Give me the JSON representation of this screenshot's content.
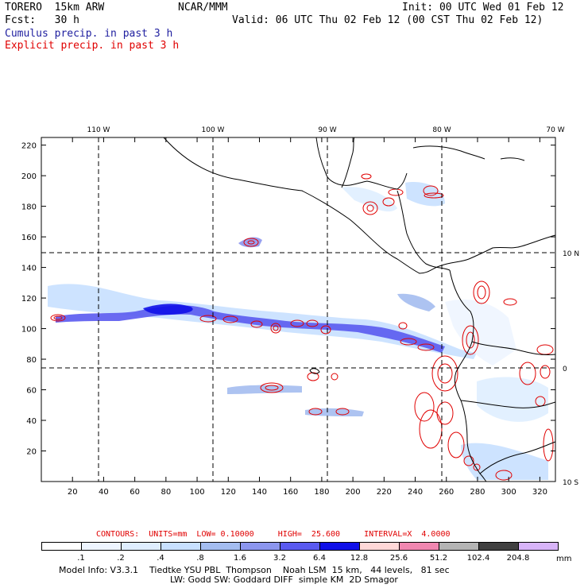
{
  "header": {
    "model": "TORERO  15km ARW",
    "org": "NCAR/MMM",
    "init": "Init: 00 UTC Wed 01 Feb 12",
    "fcst": "Fcst:   30 h",
    "valid": "Valid: 06 UTC Thu 02 Feb 12 (00 CST Thu 02 Feb 12)",
    "line_cumulus": "Cumulus precip. in past 3 h",
    "line_explicit": "Explicit precip. in past 3 h",
    "colors": {
      "cumulus": "#2020a0",
      "explicit": "#e00000"
    }
  },
  "map": {
    "lon_labels": [
      "110 W",
      "100 W",
      "90 W",
      "80 W",
      "70 W"
    ],
    "lat_labels": [
      "10 N",
      "0",
      "10 S"
    ],
    "x_ticks": [
      "20",
      "40",
      "60",
      "80",
      "100",
      "120",
      "140",
      "160",
      "180",
      "200",
      "220",
      "240",
      "260",
      "280",
      "300",
      "320"
    ],
    "y_ticks": [
      "20",
      "40",
      "60",
      "80",
      "100",
      "120",
      "140",
      "160",
      "180",
      "200",
      "220"
    ]
  },
  "contours_info": {
    "text": "CONTOURS:  UNITS=mm  LOW= 0.10000     HIGH=  25.600     INTERVAL=X  4.0000"
  },
  "colorbar": {
    "colors": [
      "#ffffff",
      "#eef5ff",
      "#dfeeff",
      "#c8e0ff",
      "#a4bdf0",
      "#8c96ee",
      "#5a5af0",
      "#1010e8",
      "#ffd8d8",
      "#f087b0",
      "#b4b4b4",
      "#404040",
      "#d8b4f8"
    ],
    "labels": [
      ".1",
      ".2",
      ".4",
      ".8",
      "1.6",
      "3.2",
      "6.4",
      "12.8",
      "25.6",
      "51.2",
      "102.4",
      "204.8"
    ],
    "unit": "mm"
  },
  "footer": {
    "line1": "Model Info: V3.3.1    Tiedtke YSU PBL  Thompson    Noah LSM  15 km,   44 levels,   81 sec",
    "line2": "LW: Godd SW: Goddard DIFF  simple KM  2D Smagor"
  }
}
